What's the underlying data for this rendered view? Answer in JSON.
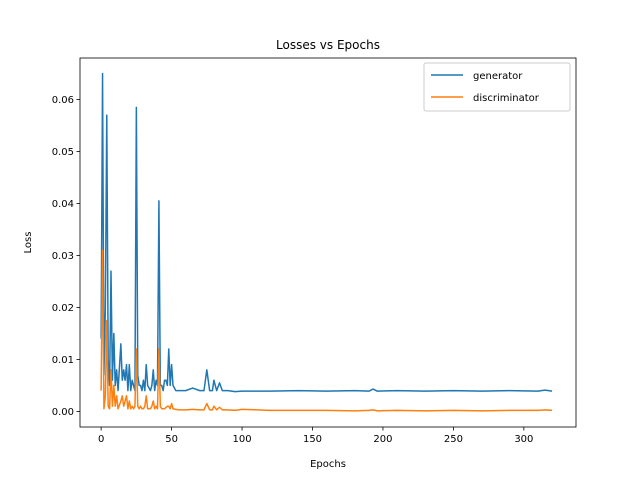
{
  "chart_data": {
    "type": "line",
    "title": "Losses vs Epochs",
    "xlabel": "Epochs",
    "ylabel": "Loss",
    "xlim": [
      -15,
      337
    ],
    "ylim": [
      -0.003,
      0.068
    ],
    "x_ticks": [
      0,
      50,
      100,
      150,
      200,
      250,
      300
    ],
    "y_ticks": [
      0.0,
      0.01,
      0.02,
      0.03,
      0.04,
      0.05,
      0.06
    ],
    "y_tick_labels": [
      "0.00",
      "0.01",
      "0.02",
      "0.03",
      "0.04",
      "0.05",
      "0.06"
    ],
    "grid": false,
    "legend_position": "top-right",
    "series": [
      {
        "name": "generator",
        "color": "#1f77b4",
        "points": [
          [
            0,
            0.014
          ],
          [
            1,
            0.065
          ],
          [
            2,
            0.007
          ],
          [
            3,
            0.02
          ],
          [
            4,
            0.057
          ],
          [
            5,
            0.01
          ],
          [
            6,
            0.005
          ],
          [
            7,
            0.027
          ],
          [
            8,
            0.006
          ],
          [
            9,
            0.015
          ],
          [
            10,
            0.005
          ],
          [
            11,
            0.008
          ],
          [
            12,
            0.004
          ],
          [
            14,
            0.013
          ],
          [
            15,
            0.006
          ],
          [
            16,
            0.008
          ],
          [
            17,
            0.006
          ],
          [
            18,
            0.009
          ],
          [
            19,
            0.004
          ],
          [
            20,
            0.009
          ],
          [
            21,
            0.004
          ],
          [
            22,
            0.006
          ],
          [
            23,
            0.005
          ],
          [
            24,
            0.004
          ],
          [
            25,
            0.0585
          ],
          [
            26,
            0.007
          ],
          [
            27,
            0.005
          ],
          [
            28,
            0.005
          ],
          [
            29,
            0.004
          ],
          [
            30,
            0.006
          ],
          [
            31,
            0.004
          ],
          [
            32,
            0.009
          ],
          [
            33,
            0.005
          ],
          [
            35,
            0.004
          ],
          [
            36,
            0.005
          ],
          [
            37,
            0.008
          ],
          [
            38,
            0.004
          ],
          [
            39,
            0.006
          ],
          [
            40,
            0.005
          ],
          [
            41,
            0.0405
          ],
          [
            42,
            0.005
          ],
          [
            43,
            0.005
          ],
          [
            44,
            0.004
          ],
          [
            45,
            0.006
          ],
          [
            46,
            0.006
          ],
          [
            47,
            0.005
          ],
          [
            48,
            0.012
          ],
          [
            49,
            0.005
          ],
          [
            50,
            0.009
          ],
          [
            51,
            0.005
          ],
          [
            53,
            0.004
          ],
          [
            55,
            0.004
          ],
          [
            60,
            0.004
          ],
          [
            65,
            0.0045
          ],
          [
            70,
            0.004
          ],
          [
            73,
            0.004
          ],
          [
            75,
            0.008
          ],
          [
            77,
            0.004
          ],
          [
            79,
            0.004
          ],
          [
            80,
            0.006
          ],
          [
            82,
            0.004
          ],
          [
            84,
            0.0055
          ],
          [
            86,
            0.004
          ],
          [
            90,
            0.004
          ],
          [
            95,
            0.0038
          ],
          [
            100,
            0.0039
          ],
          [
            120,
            0.0039
          ],
          [
            140,
            0.004
          ],
          [
            160,
            0.0039
          ],
          [
            180,
            0.004
          ],
          [
            190,
            0.0039
          ],
          [
            193,
            0.0043
          ],
          [
            196,
            0.0039
          ],
          [
            210,
            0.004
          ],
          [
            230,
            0.0039
          ],
          [
            250,
            0.004
          ],
          [
            270,
            0.0039
          ],
          [
            290,
            0.004
          ],
          [
            310,
            0.0039
          ],
          [
            315,
            0.0041
          ],
          [
            320,
            0.0039
          ]
        ]
      },
      {
        "name": "discriminator",
        "color": "#ff7f0e",
        "points": [
          [
            0,
            0.004
          ],
          [
            1,
            0.031
          ],
          [
            2,
            0.0005
          ],
          [
            3,
            0.003
          ],
          [
            4,
            0.0175
          ],
          [
            5,
            0.001
          ],
          [
            6,
            0.0005
          ],
          [
            7,
            0.008
          ],
          [
            8,
            0.001
          ],
          [
            9,
            0.005
          ],
          [
            10,
            0.001
          ],
          [
            11,
            0.003
          ],
          [
            12,
            0.0005
          ],
          [
            14,
            0.002
          ],
          [
            15,
            0.003
          ],
          [
            16,
            0.001
          ],
          [
            17,
            0.002
          ],
          [
            18,
            0.003
          ],
          [
            19,
            0.0005
          ],
          [
            20,
            0.002
          ],
          [
            21,
            0.0005
          ],
          [
            22,
            0.001
          ],
          [
            23,
            0.0005
          ],
          [
            24,
            0.001
          ],
          [
            25,
            0.012
          ],
          [
            26,
            0.001
          ],
          [
            27,
            0.0005
          ],
          [
            28,
            0.001
          ],
          [
            29,
            0.0005
          ],
          [
            30,
            0.0005
          ],
          [
            31,
            0.001
          ],
          [
            32,
            0.003
          ],
          [
            33,
            0.0005
          ],
          [
            35,
            0.0005
          ],
          [
            36,
            0.001
          ],
          [
            37,
            0.002
          ],
          [
            38,
            0.0005
          ],
          [
            39,
            0.001
          ],
          [
            40,
            0.0005
          ],
          [
            41,
            0.012
          ],
          [
            42,
            0.001
          ],
          [
            43,
            0.0005
          ],
          [
            44,
            0.0005
          ],
          [
            45,
            0.0005
          ],
          [
            47,
            0.001
          ],
          [
            48,
            0.001
          ],
          [
            49,
            0.0005
          ],
          [
            50,
            0.0015
          ],
          [
            51,
            0.0005
          ],
          [
            55,
            0.0003
          ],
          [
            60,
            0.0003
          ],
          [
            65,
            0.0004
          ],
          [
            70,
            0.0003
          ],
          [
            73,
            0.0003
          ],
          [
            75,
            0.0015
          ],
          [
            77,
            0.0003
          ],
          [
            79,
            0.0003
          ],
          [
            80,
            0.001
          ],
          [
            82,
            0.0003
          ],
          [
            84,
            0.0008
          ],
          [
            86,
            0.0003
          ],
          [
            90,
            0.0003
          ],
          [
            95,
            0.0002
          ],
          [
            100,
            0.0004
          ],
          [
            120,
            0.0002
          ],
          [
            140,
            0.0002
          ],
          [
            160,
            0.0002
          ],
          [
            180,
            0.0001
          ],
          [
            190,
            0.0002
          ],
          [
            193,
            0.0003
          ],
          [
            196,
            0.0001
          ],
          [
            210,
            0.0002
          ],
          [
            230,
            0.0001
          ],
          [
            250,
            0.0002
          ],
          [
            270,
            0.0001
          ],
          [
            290,
            0.0002
          ],
          [
            310,
            0.0002
          ],
          [
            315,
            0.0003
          ],
          [
            320,
            0.0002
          ]
        ]
      }
    ]
  }
}
